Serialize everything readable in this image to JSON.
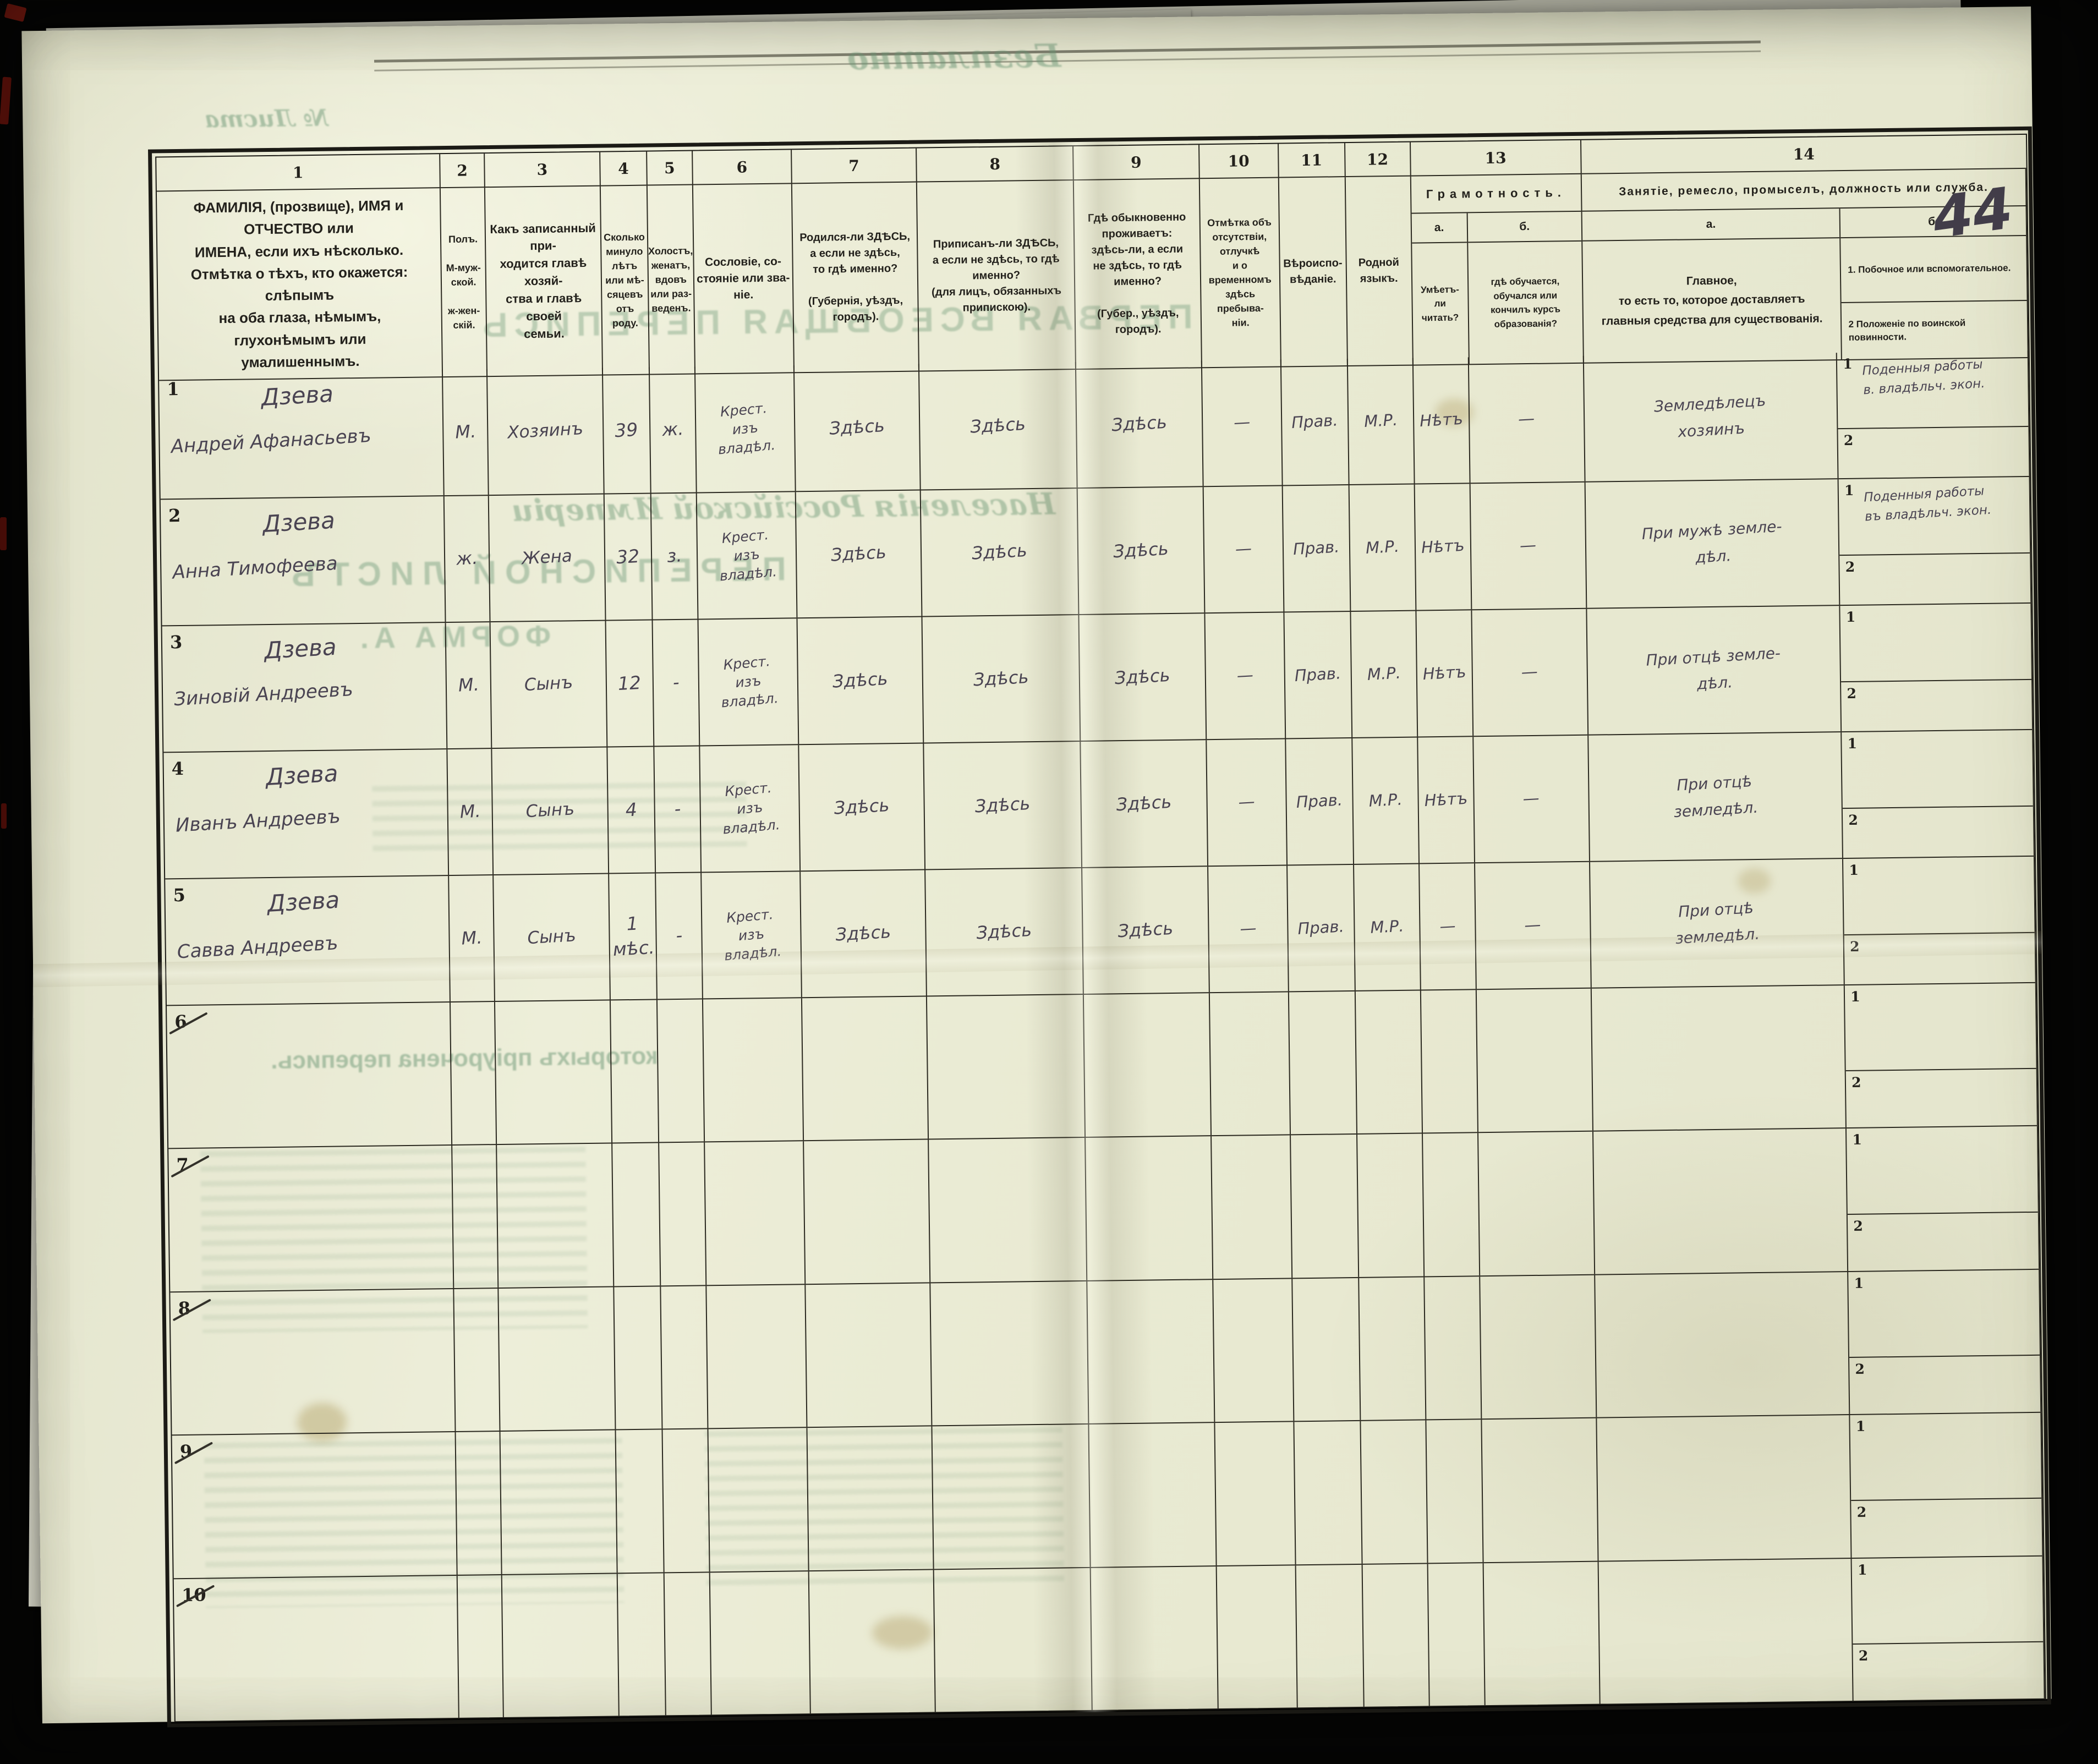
{
  "page": {
    "number": "44",
    "colors": {
      "paper": "#e9ead4",
      "print_ink": "#23211c",
      "hand_ink": "#4a4452",
      "bleed_green": "#6a9674",
      "mat_black": "#060605"
    },
    "bleedthrough": [
      {
        "text": "Безплатно"
      },
      {
        "text": "№ Листа"
      },
      {
        "text": "ПЕРВАЯ ВСЕОБЩАЯ ПЕРЕПИСЬ"
      },
      {
        "text": "Населенія Россійской Имперіи"
      },
      {
        "text": "ПЕРЕПИСНОЙ ЛИСТЪ"
      },
      {
        "text": "ФОРМА А."
      },
      {
        "text": "которыхъ пріурочена перепись."
      }
    ]
  },
  "table": {
    "header": {
      "nums": [
        "1",
        "2",
        "3",
        "4",
        "5",
        "6",
        "7",
        "8",
        "9",
        "10",
        "11",
        "12",
        "13",
        "14"
      ],
      "col1": "ФАМИЛІЯ, (прозвище), ИМЯ и ОТЧЕСТВО или\nИМЕНА, если ихъ нѣсколько.\nОтмѣтка о тѣхъ, кто окажется: слѣпымъ\nна оба глаза, нѣмымъ, глухонѣмымъ или\nумалишеннымъ.",
      "col2": "Полъ.\n\nМ-муж-\nской.\n\nж-жен-\nскій.",
      "col3": "Какъ записанный при-\nходится главѣ хозяй-\nства и главѣ своей\nсемьи.",
      "col4": "Сколько\nминуло\nлѣтъ\nили мѣ-\nсяцевъ\nотъ роду.",
      "col5": "Холостъ,\nженатъ,\nвдовъ\nили раз-\nведенъ.",
      "col6": "Сословіе, со-\nстояніе или зва-\nніе.",
      "col7": "Родился-ли ЗДѢСЬ,\nа если не здѣсь,\nто гдѣ именно?\n\n(Губернія, уѣздъ, городъ).",
      "col8": "Приписанъ-ли ЗДѢСЬ,\nа если не здѣсь, то гдѣ\nименно?\n(для лицъ, обязанныхъ\nприпискою).",
      "col9": "Гдѣ обыкновенно\nпроживаетъ:\nздѣсь-ли, а если\nне здѣсь, то гдѣ\nименно?\n\n(Губер., уѣздъ, городъ).",
      "col10": "Отмѣтка объ\nотсутствіи, отлучкѣ\nи о временномъ\nздѣсь пребыва-\nніи.",
      "col11": "Вѣроиспо-\nвѣданіе.",
      "col12": "Родной\nязыкъ.",
      "col13": {
        "label": "Грамотность.",
        "a_letter": "а.",
        "a_text": "Умѣетъ-\nли\nчитать?",
        "b_letter": "б.",
        "b_text": "гдѣ обучается,\nобучался или\nкончилъ курсъ\nобразованія?"
      },
      "col14": {
        "label": "Занятіе, ремесло, промыселъ, должность или служба.",
        "a_letter": "а.",
        "a_text": "Главное,\nто есть то, которое доставляетъ\nглавныя средства для существованія.",
        "b_letter": "б.",
        "b1": "1.  Побочное или вспомогательное.",
        "b2": "2   Положеніе по воинской повинности."
      }
    },
    "body_sub_labels": [
      "1",
      "2"
    ],
    "rows": [
      {
        "num": "1",
        "crossed": false,
        "surname": "Дзева",
        "name": "Андрей Афанасьевъ",
        "sex": "М.",
        "relation": "Хозяинъ",
        "age": "39",
        "marital": "ж.",
        "estate": "Крест.\nизъ\nвладѣл.",
        "born": "Здѣсь",
        "registered": "Здѣсь",
        "resides": "Здѣсь",
        "absence": "—",
        "faith": "Прав.",
        "language": "М.Р.",
        "reads": "Нѣтъ",
        "education": "—",
        "main": "Земледѣлецъ\nхозяинъ",
        "side1": "Поденныя работы\nв. владѣльч. экон.",
        "side2": ""
      },
      {
        "num": "2",
        "crossed": false,
        "surname": "Дзева",
        "name": "Анна Тимофеева",
        "sex": "ж.",
        "relation": "Жена",
        "age": "32",
        "marital": "з.",
        "estate": "Крест.\nизъ\nвладѣл.",
        "born": "Здѣсь",
        "registered": "Здѣсь",
        "resides": "Здѣсь",
        "absence": "—",
        "faith": "Прав.",
        "language": "М.Р.",
        "reads": "Нѣтъ",
        "education": "—",
        "main": "При мужѣ земле-\nдѣл.",
        "side1": "Поденныя работы\nвъ владѣльч. экон.",
        "side2": ""
      },
      {
        "num": "3",
        "crossed": false,
        "surname": "Дзева",
        "name": "Зиновій Андреевъ",
        "sex": "М.",
        "relation": "Сынъ",
        "age": "12",
        "marital": "-",
        "estate": "Крест.\nизъ\nвладѣл.",
        "born": "Здѣсь",
        "registered": "Здѣсь",
        "resides": "Здѣсь",
        "absence": "—",
        "faith": "Прав.",
        "language": "М.Р.",
        "reads": "Нѣтъ",
        "education": "—",
        "main": "При отцѣ земле-\nдѣл.",
        "side1": "",
        "side2": ""
      },
      {
        "num": "4",
        "crossed": false,
        "surname": "Дзева",
        "name": "Иванъ Андреевъ",
        "sex": "М.",
        "relation": "Сынъ",
        "age": "4",
        "marital": "-",
        "estate": "Крест.\nизъ\nвладѣл.",
        "born": "Здѣсь",
        "registered": "Здѣсь",
        "resides": "Здѣсь",
        "absence": "—",
        "faith": "Прав.",
        "language": "М.Р.",
        "reads": "Нѣтъ",
        "education": "—",
        "main": "При отцѣ\nземледѣл.",
        "side1": "",
        "side2": ""
      },
      {
        "num": "5",
        "crossed": false,
        "surname": "Дзева",
        "name": "Савва Андреевъ",
        "sex": "М.",
        "relation": "Сынъ",
        "age": "1\nмѣс.",
        "marital": "-",
        "estate": "Крест.\nизъ\nвладѣл.",
        "born": "Здѣсь",
        "registered": "Здѣсь",
        "resides": "Здѣсь",
        "absence": "—",
        "faith": "Прав.",
        "language": "М.Р.",
        "reads": "—",
        "education": "—",
        "main": "При отцѣ\nземледѣл.",
        "side1": "",
        "side2": ""
      },
      {
        "num": "6",
        "crossed": true,
        "surname": "",
        "name": "",
        "sex": "",
        "relation": "",
        "age": "",
        "marital": "",
        "estate": "",
        "born": "",
        "registered": "",
        "resides": "",
        "absence": "",
        "faith": "",
        "language": "",
        "reads": "",
        "education": "",
        "main": "",
        "side1": "",
        "side2": ""
      },
      {
        "num": "7",
        "crossed": true,
        "surname": "",
        "name": "",
        "sex": "",
        "relation": "",
        "age": "",
        "marital": "",
        "estate": "",
        "born": "",
        "registered": "",
        "resides": "",
        "absence": "",
        "faith": "",
        "language": "",
        "reads": "",
        "education": "",
        "main": "",
        "side1": "",
        "side2": ""
      },
      {
        "num": "8",
        "crossed": true,
        "surname": "",
        "name": "",
        "sex": "",
        "relation": "",
        "age": "",
        "marital": "",
        "estate": "",
        "born": "",
        "registered": "",
        "resides": "",
        "absence": "",
        "faith": "",
        "language": "",
        "reads": "",
        "education": "",
        "main": "",
        "side1": "",
        "side2": ""
      },
      {
        "num": "9",
        "crossed": true,
        "surname": "",
        "name": "",
        "sex": "",
        "relation": "",
        "age": "",
        "marital": "",
        "estate": "",
        "born": "",
        "registered": "",
        "resides": "",
        "absence": "",
        "faith": "",
        "language": "",
        "reads": "",
        "education": "",
        "main": "",
        "side1": "",
        "side2": ""
      },
      {
        "num": "10",
        "crossed": true,
        "surname": "",
        "name": "",
        "sex": "",
        "relation": "",
        "age": "",
        "marital": "",
        "estate": "",
        "born": "",
        "registered": "",
        "resides": "",
        "absence": "",
        "faith": "",
        "language": "",
        "reads": "",
        "education": "",
        "main": "",
        "side1": "",
        "side2": ""
      }
    ]
  }
}
